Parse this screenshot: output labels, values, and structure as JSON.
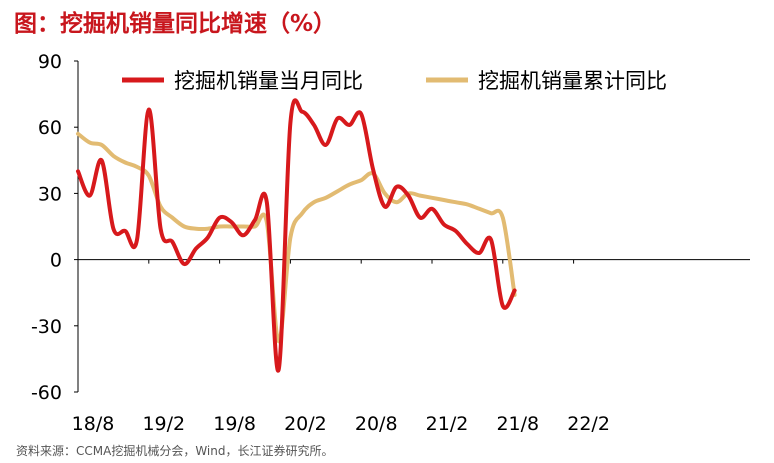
{
  "title": "图：挖掘机销量同比增速（%）",
  "source": "资料来源：CCMA挖掘机械分会，Wind，长江证券研究所。",
  "colors": {
    "accent": "#c8161d",
    "series1": "#d7191c",
    "series2": "#e2bb72"
  },
  "chart_data": {
    "type": "line",
    "ylim": [
      -60,
      90
    ],
    "yticks": [
      90,
      60,
      30,
      0,
      -30,
      -60
    ],
    "xticks": [
      "18/8",
      "19/2",
      "19/8",
      "20/2",
      "20/8",
      "21/2",
      "21/8",
      "22/2"
    ],
    "x_start": "2018-08",
    "legend_position": "top",
    "series": [
      {
        "name": "挖掘机销量当月同比",
        "color": "#d7191c",
        "values": [
          40,
          29,
          45,
          14,
          13,
          9,
          68,
          14,
          8,
          -2,
          5,
          10,
          19,
          17,
          11,
          18,
          26,
          -50,
          62,
          67,
          61,
          52,
          64,
          61,
          66,
          41,
          24,
          33,
          29,
          19,
          23,
          16,
          13,
          7,
          3,
          9,
          -21,
          -14
        ]
      },
      {
        "name": "挖掘机销量累计同比",
        "color": "#e2bb72",
        "values": [
          57,
          53,
          52,
          47,
          44,
          42,
          38,
          24,
          19,
          15,
          14,
          14,
          15,
          15,
          15,
          15,
          17,
          -37,
          10,
          21,
          26,
          28,
          31,
          34,
          36,
          39,
          30,
          26,
          30,
          29,
          28,
          27,
          26,
          25,
          23,
          21,
          19,
          -16
        ]
      }
    ]
  }
}
